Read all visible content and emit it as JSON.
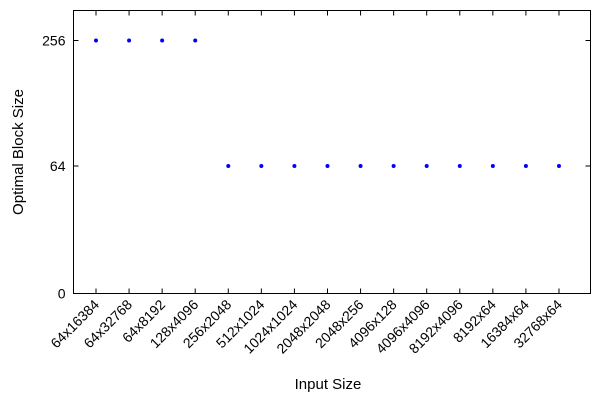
{
  "chart_data": {
    "type": "scatter",
    "title": "",
    "xlabel": "Input Size",
    "ylabel": "Optimal Block Size",
    "categories": [
      "64x16384",
      "64x32768",
      "64x8192",
      "128x4096",
      "256x2048",
      "512x1024",
      "1024x1024",
      "2048x2048",
      "2048x256",
      "4096x128",
      "4096x4096",
      "8192x4096",
      "8192x64",
      "16384x64",
      "32768x64"
    ],
    "y_ticks": [
      0,
      64,
      256
    ],
    "y_tick_labels": [
      "0",
      "64",
      "256"
    ],
    "y_scale": "nonlinear-categorical (0, 64, 256 evenly spaced)",
    "series": [
      {
        "color": "#0000ff",
        "values": [
          256,
          256,
          256,
          256,
          64,
          64,
          64,
          64,
          64,
          64,
          64,
          64,
          64,
          64,
          64
        ]
      }
    ],
    "grid": false,
    "legend": "none"
  }
}
